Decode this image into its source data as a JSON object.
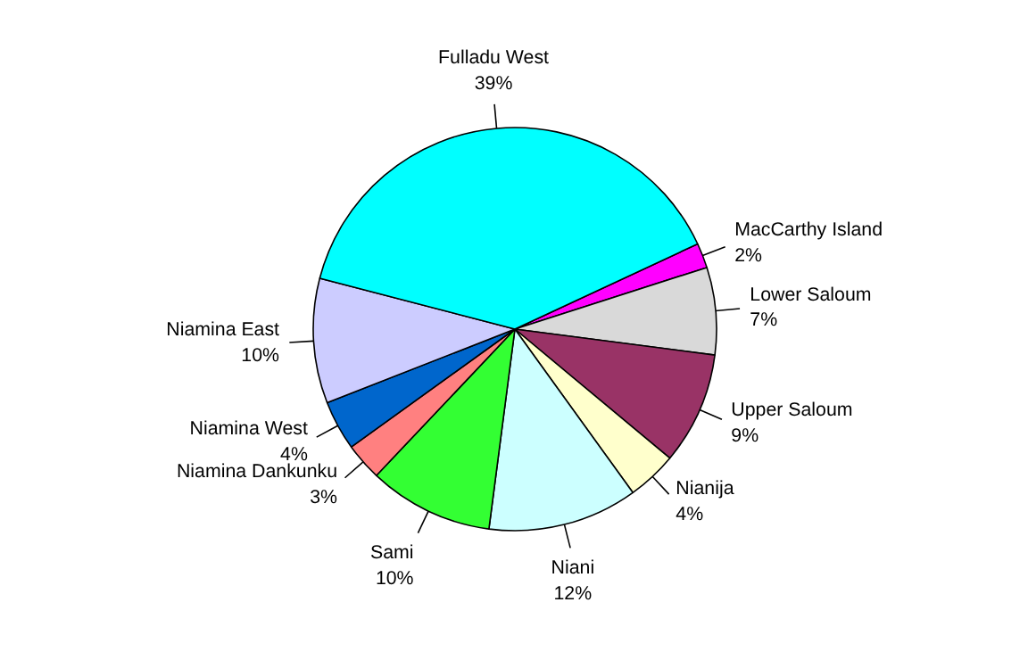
{
  "chart_data": {
    "type": "pie",
    "categories": [
      "MacCarthy Island",
      "Lower Saloum",
      "Upper Saloum",
      "Nianija",
      "Niani",
      "Sami",
      "Niamina Dankunku",
      "Niamina West",
      "Niamina East",
      "Fulladu West"
    ],
    "values": [
      2,
      7,
      9,
      4,
      12,
      10,
      3,
      4,
      10,
      39
    ],
    "colors": [
      "#ff00ff",
      "#d9d9d9",
      "#993366",
      "#ffffcc",
      "#ccffff",
      "#33ff33",
      "#ff8080",
      "#0066cc",
      "#ccccff",
      "#00ffff"
    ],
    "value_labels": [
      "2%",
      "7%",
      "9%",
      "4%",
      "12%",
      "10%",
      "3%",
      "4%",
      "10%",
      "39%"
    ]
  }
}
